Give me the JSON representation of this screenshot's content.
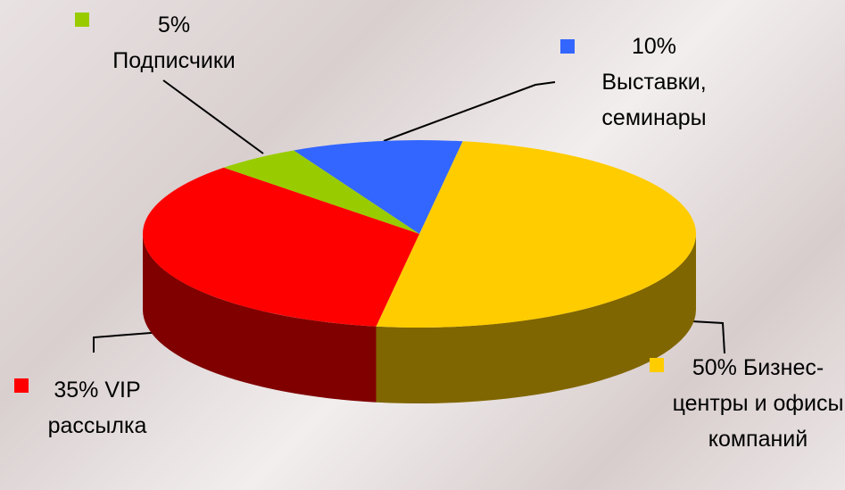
{
  "chart_data": {
    "type": "pie",
    "series": [
      {
        "name": "Бизнес-центры и офисы компаний",
        "value": 50,
        "value_label": "50%",
        "color": "#ffcc00",
        "side_color": "#806600"
      },
      {
        "name": "VIP рассылка",
        "value": 35,
        "value_label": "35%",
        "color": "#ff0000",
        "side_color": "#800000"
      },
      {
        "name": "Подписчики",
        "value": 5,
        "value_label": "5%",
        "color": "#99cc00",
        "side_color": "#4d6600"
      },
      {
        "name": "Выставки, семинары",
        "value": 10,
        "value_label": "10%",
        "color": "#3366ff",
        "side_color": "#1a3380"
      }
    ]
  }
}
